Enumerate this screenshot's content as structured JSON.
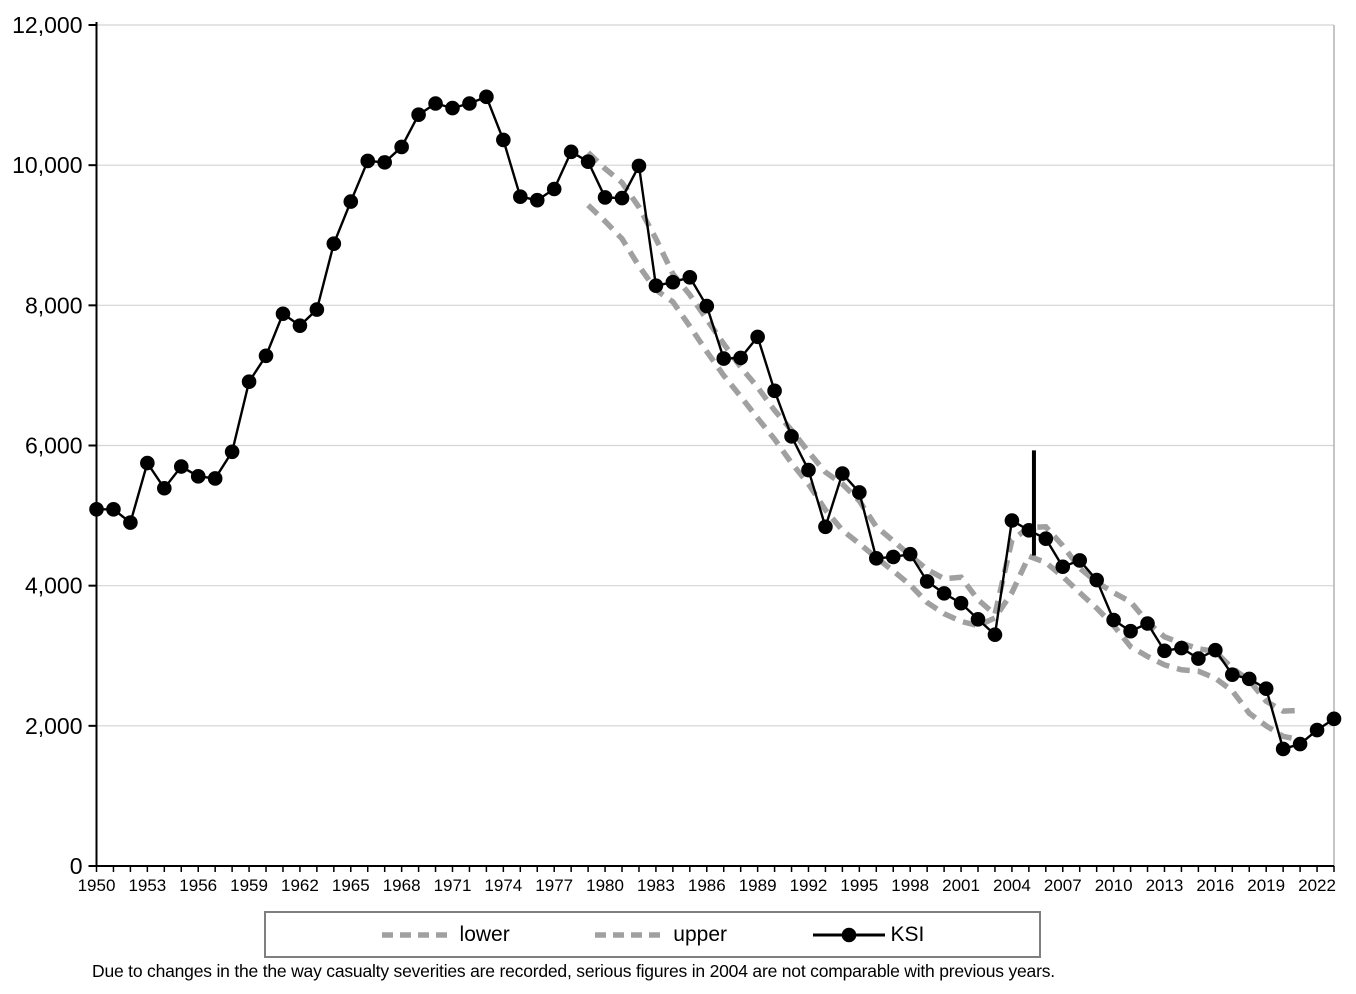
{
  "chart_data": {
    "type": "line",
    "title": "",
    "xlabel": "",
    "ylabel": "",
    "grid": "horizontal",
    "x_axis": {
      "range": [
        1950,
        2023
      ],
      "minor_tick_every": 1,
      "tick_labels": [
        "1950",
        "1953",
        "1956",
        "1959",
        "1962",
        "1965",
        "1968",
        "1971",
        "1974",
        "1977",
        "1980",
        "1983",
        "1986",
        "1989",
        "1992",
        "1995",
        "1998",
        "2001",
        "2004",
        "2007",
        "2010",
        "2013",
        "2016",
        "2019",
        "2022"
      ]
    },
    "y_axis": {
      "min": 0,
      "max": 12000,
      "tick_step": 2000,
      "tick_labels": [
        "0",
        "2,000",
        "4,000",
        "6,000",
        "8,000",
        "10,000",
        "12,000"
      ]
    },
    "series": [
      {
        "name": "lower",
        "color": "#a0a0a0",
        "stroke_width": 5.5,
        "dash": "13 8",
        "marker": false,
        "start_year": 1979,
        "values": [
          9430,
          9200,
          8950,
          8560,
          8220,
          8050,
          7700,
          7340,
          7000,
          6700,
          6390,
          6090,
          5750,
          5450,
          5080,
          4790,
          4600,
          4400,
          4210,
          4010,
          3760,
          3600,
          3490,
          3430,
          3540,
          3900,
          4420,
          4330,
          4130,
          3900,
          3680,
          3430,
          3130,
          2990,
          2870,
          2800,
          2780,
          2680,
          2500,
          2180,
          2000,
          1850,
          1800
        ]
      },
      {
        "name": "upper",
        "color": "#a0a0a0",
        "stroke_width": 5.5,
        "dash": "13 8",
        "marker": false,
        "start_year": 1979,
        "values": [
          10180,
          9950,
          9750,
          9400,
          8950,
          8450,
          8150,
          7800,
          7450,
          7120,
          6830,
          6500,
          6220,
          5910,
          5620,
          5450,
          5210,
          4840,
          4640,
          4430,
          4230,
          4100,
          4120,
          3800,
          3590,
          4650,
          4830,
          4840,
          4570,
          4250,
          4050,
          3900,
          3770,
          3480,
          3270,
          3180,
          3100,
          3060,
          2820,
          2650,
          2350,
          2210,
          2220
        ]
      },
      {
        "name": "KSI",
        "color": "#000000",
        "stroke_width": 2.4,
        "dash": null,
        "marker": true,
        "marker_radius": 7.3,
        "start_year": 1950,
        "values": [
          5090,
          5090,
          4900,
          5750,
          5390,
          5700,
          5560,
          5530,
          5910,
          6910,
          7280,
          7880,
          7710,
          7940,
          8880,
          9480,
          10060,
          10040,
          10260,
          10720,
          10880,
          10815,
          10880,
          10975,
          10360,
          9550,
          9500,
          9660,
          10190,
          10050,
          9540,
          9530,
          9990,
          8280,
          8330,
          8400,
          7990,
          7240,
          7250,
          7550,
          6780,
          6130,
          5650,
          4840,
          5600,
          5330,
          4390,
          4410,
          4450,
          4060,
          3890,
          3750,
          3520,
          3300,
          4930,
          4790,
          4670,
          4270,
          4360,
          4080,
          3510,
          3350,
          3460,
          3070,
          3110,
          2960,
          3080,
          2730,
          2670,
          2530,
          1670,
          1740,
          1940,
          2100
        ]
      }
    ],
    "annotation": {
      "type": "vertical-line",
      "year": 2005.3,
      "value_from": 4430,
      "value_to": 5930,
      "color": "#000000",
      "stroke_width": 4
    },
    "legend": {
      "position": "bottom",
      "entries": [
        "lower",
        "upper",
        "KSI"
      ]
    }
  },
  "footnote": {
    "text": "Due to changes in the the way casualty severities are recorded, serious figures in 2004 are not comparable with previous years."
  },
  "colors": {
    "gridline": "#d4d4d4",
    "plot_border": "#b3b3b3",
    "axis": "#000000",
    "dashed_gray": "#a0a0a0",
    "ksi_black": "#000000",
    "legend_border": "#7f7f7f"
  }
}
